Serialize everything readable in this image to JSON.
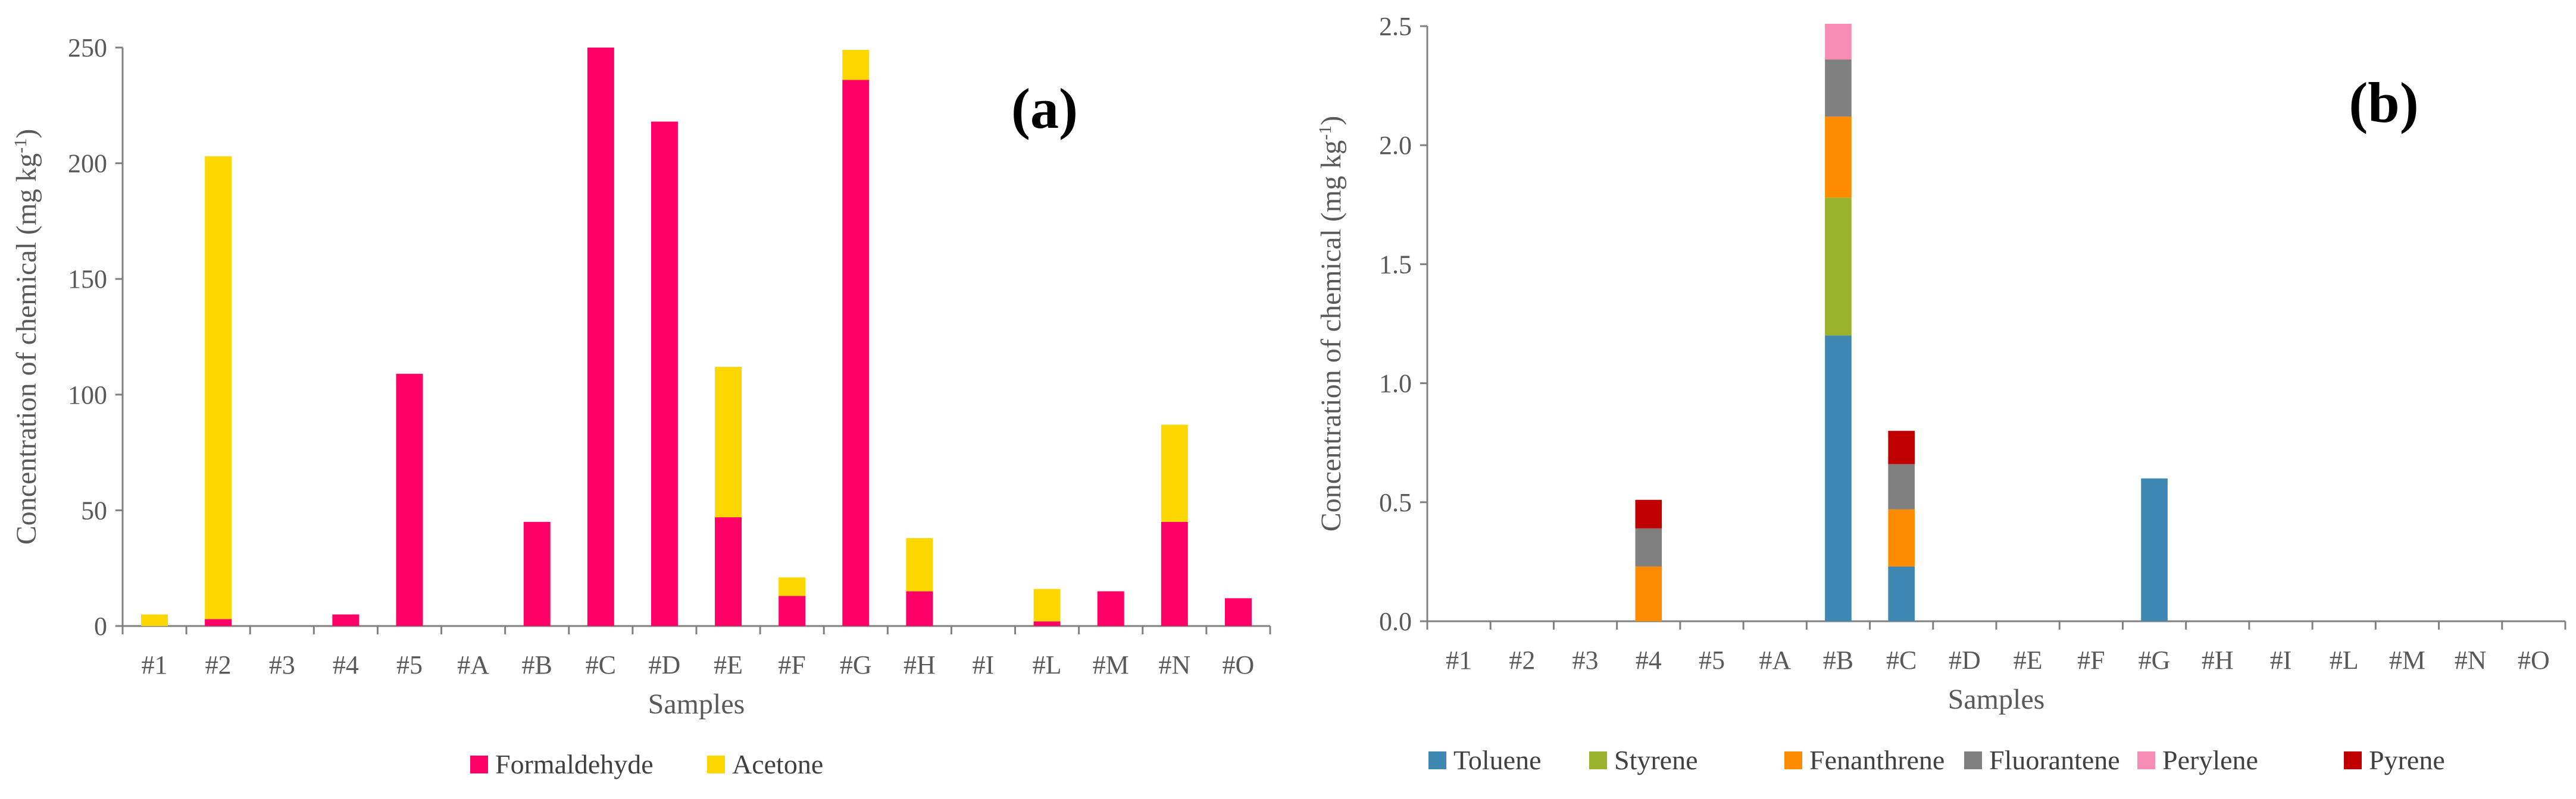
{
  "chart_data": [
    {
      "type": "bar",
      "stacked": true,
      "panel_label": "(a)",
      "title": "",
      "xlabel": "Samples",
      "ylabel": "Concentration of chemical",
      "ylabel_unit": "(mg kg",
      "ylabel_unit_sup": "-1",
      "ylabel_unit_close": ")",
      "ylim": [
        0,
        250
      ],
      "yticks": [
        0,
        50,
        100,
        150,
        200,
        250
      ],
      "ytick_labels": [
        "0",
        "50",
        "100",
        "150",
        "200",
        "250"
      ],
      "grid": false,
      "legend_position": "bottom",
      "categories": [
        "#1",
        "#2",
        "#3",
        "#4",
        "#5",
        "#A",
        "#B",
        "#C",
        "#D",
        "#E",
        "#F",
        "#G",
        "#H",
        "#I",
        "#L",
        "#M",
        "#N",
        "#O"
      ],
      "series": [
        {
          "name": "Formaldehyde",
          "color": "#FF0066",
          "values": [
            0,
            3,
            0,
            5,
            109,
            0,
            45,
            250,
            218,
            47,
            13,
            236,
            15,
            0,
            2,
            15,
            45,
            12
          ]
        },
        {
          "name": "Acetone",
          "color": "#FFD700",
          "values": [
            5,
            200,
            0,
            0,
            0,
            0,
            0,
            0,
            0,
            65,
            8,
            13,
            23,
            0,
            14,
            0,
            42,
            0
          ]
        }
      ]
    },
    {
      "type": "bar",
      "stacked": true,
      "panel_label": "(b)",
      "title": "",
      "xlabel": "Samples",
      "ylabel": "Concentration of chemical",
      "ylabel_unit": "(mg kg",
      "ylabel_unit_sup": "-1",
      "ylabel_unit_close": ")",
      "ylim": [
        0,
        2.5
      ],
      "yticks": [
        0,
        0.5,
        1,
        1.5,
        2,
        2.5
      ],
      "ytick_labels": [
        "0.0",
        "0.5",
        "1.0",
        "1.5",
        "2.0",
        "2.5"
      ],
      "grid": false,
      "legend_position": "bottom",
      "categories": [
        "#1",
        "#2",
        "#3",
        "#4",
        "#5",
        "#A",
        "#B",
        "#C",
        "#D",
        "#E",
        "#F",
        "#G",
        "#H",
        "#I",
        "#L",
        "#M",
        "#N",
        "#O"
      ],
      "series": [
        {
          "name": "Toluene",
          "color": "#3F88B4",
          "values": [
            0,
            0,
            0,
            0,
            0,
            0,
            1.2,
            0.23,
            0,
            0,
            0,
            0.6,
            0,
            0,
            0,
            0,
            0,
            0
          ]
        },
        {
          "name": "Styrene",
          "color": "#9BB32C",
          "values": [
            0,
            0,
            0,
            0,
            0,
            0,
            0.58,
            0,
            0,
            0,
            0,
            0,
            0,
            0,
            0,
            0,
            0,
            0
          ]
        },
        {
          "name": "Fenanthrene",
          "color": "#FF8C00",
          "values": [
            0,
            0,
            0,
            0.23,
            0,
            0,
            0.34,
            0.24,
            0,
            0,
            0,
            0,
            0,
            0,
            0,
            0,
            0,
            0
          ]
        },
        {
          "name": "Fluorantene",
          "color": "#808080",
          "values": [
            0,
            0,
            0,
            0.16,
            0,
            0,
            0.24,
            0.19,
            0,
            0,
            0,
            0,
            0,
            0,
            0,
            0,
            0,
            0
          ]
        },
        {
          "name": "Perylene",
          "color": "#F78CB5",
          "values": [
            0,
            0,
            0,
            0,
            0,
            0,
            0.15,
            0,
            0,
            0,
            0,
            0,
            0,
            0,
            0,
            0,
            0,
            0
          ]
        },
        {
          "name": "Pyrene",
          "color": "#C00000",
          "values": [
            0,
            0,
            0,
            0.12,
            0,
            0,
            0,
            0.14,
            0,
            0,
            0,
            0,
            0,
            0,
            0,
            0,
            0,
            0
          ]
        }
      ]
    }
  ]
}
